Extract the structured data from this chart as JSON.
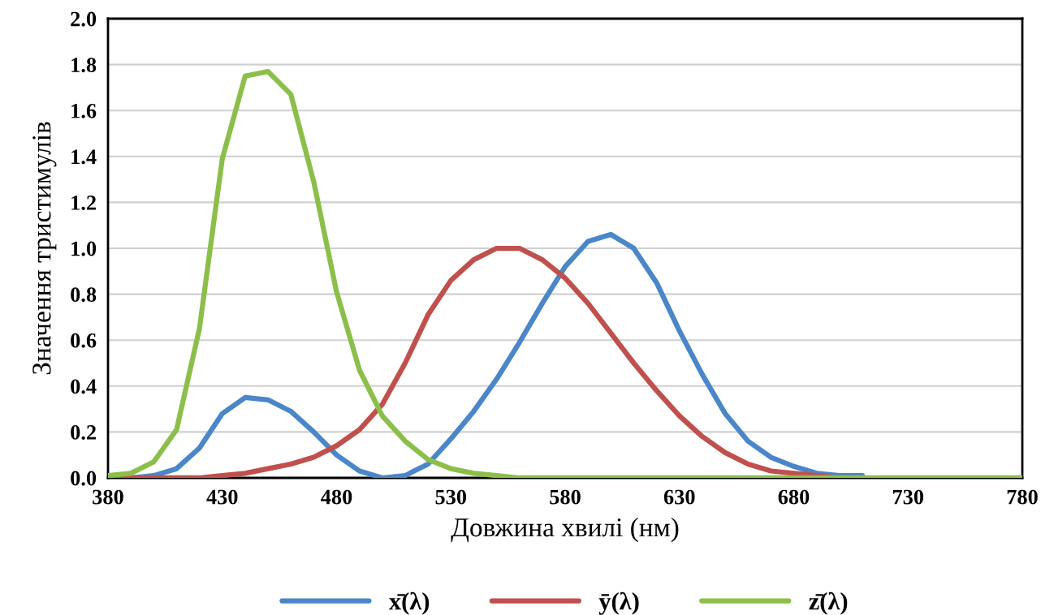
{
  "chart_data": {
    "type": "line",
    "xlabel": "Довжина хвилі (нм)",
    "ylabel": "Значення тристимулів",
    "x": [
      380,
      390,
      400,
      410,
      420,
      430,
      440,
      450,
      460,
      470,
      480,
      490,
      500,
      510,
      520,
      530,
      540,
      550,
      560,
      570,
      580,
      590,
      600,
      610,
      620,
      630,
      640,
      650,
      660,
      670,
      680,
      690,
      700,
      710,
      720,
      730,
      740,
      750,
      760,
      770,
      780
    ],
    "series": [
      {
        "name": "x̄(λ)",
        "color": "#4a86c8",
        "values": [
          0.0,
          0.0,
          0.01,
          0.04,
          0.13,
          0.28,
          0.35,
          0.34,
          0.29,
          0.2,
          0.1,
          0.03,
          0.0,
          0.01,
          0.06,
          0.17,
          0.29,
          0.43,
          0.59,
          0.76,
          0.92,
          1.03,
          1.06,
          1.0,
          0.85,
          0.64,
          0.45,
          0.28,
          0.16,
          0.09,
          0.05,
          0.02,
          0.01,
          0.01,
          null,
          null,
          null,
          null,
          null,
          null,
          null
        ]
      },
      {
        "name": "ȳ(λ)",
        "color": "#c0504d",
        "values": [
          0.0,
          0.0,
          0.0,
          0.0,
          0.0,
          0.01,
          0.02,
          0.04,
          0.06,
          0.09,
          0.14,
          0.21,
          0.32,
          0.5,
          0.71,
          0.86,
          0.95,
          1.0,
          1.0,
          0.95,
          0.87,
          0.76,
          0.63,
          0.5,
          0.38,
          0.27,
          0.18,
          0.11,
          0.06,
          0.03,
          0.02,
          0.01,
          0.0,
          0.0,
          null,
          null,
          null,
          null,
          null,
          null,
          null
        ]
      },
      {
        "name": "z̄(λ)",
        "color": "#8cbf4a",
        "values": [
          0.01,
          0.02,
          0.07,
          0.21,
          0.65,
          1.39,
          1.75,
          1.77,
          1.67,
          1.29,
          0.81,
          0.47,
          0.27,
          0.16,
          0.08,
          0.04,
          0.02,
          0.01,
          0.0,
          0.0,
          0.0,
          0.0,
          0.0,
          0.0,
          0.0,
          0.0,
          0.0,
          0.0,
          0.0,
          0.0,
          0.0,
          0.0,
          0.0,
          0.0,
          0.0,
          0.0,
          0.0,
          0.0,
          0.0,
          0.0,
          0.0
        ]
      }
    ],
    "xlim": [
      380,
      780
    ],
    "xticks": [
      380,
      430,
      480,
      530,
      580,
      630,
      680,
      730,
      780
    ],
    "ylim": [
      0,
      2.0
    ],
    "yticks": [
      {
        "value": 0,
        "label": "0.0"
      },
      {
        "value": 0.2,
        "label": "0.2"
      },
      {
        "value": 0.4,
        "label": "0.4"
      },
      {
        "value": 0.6,
        "label": "0.6"
      },
      {
        "value": 0.8,
        "label": "0.8"
      },
      {
        "value": 1.0,
        "label": "1.0"
      },
      {
        "value": 1.2,
        "label": "1.2"
      },
      {
        "value": 1.4,
        "label": "1.4"
      },
      {
        "value": 1.6,
        "label": "1.6"
      },
      {
        "value": 1.8,
        "label": "1.8"
      },
      {
        "value": 2.0,
        "label": "2.0"
      }
    ],
    "grid": "y",
    "legend": "bottom",
    "line_style": "solid",
    "marker": "none"
  }
}
